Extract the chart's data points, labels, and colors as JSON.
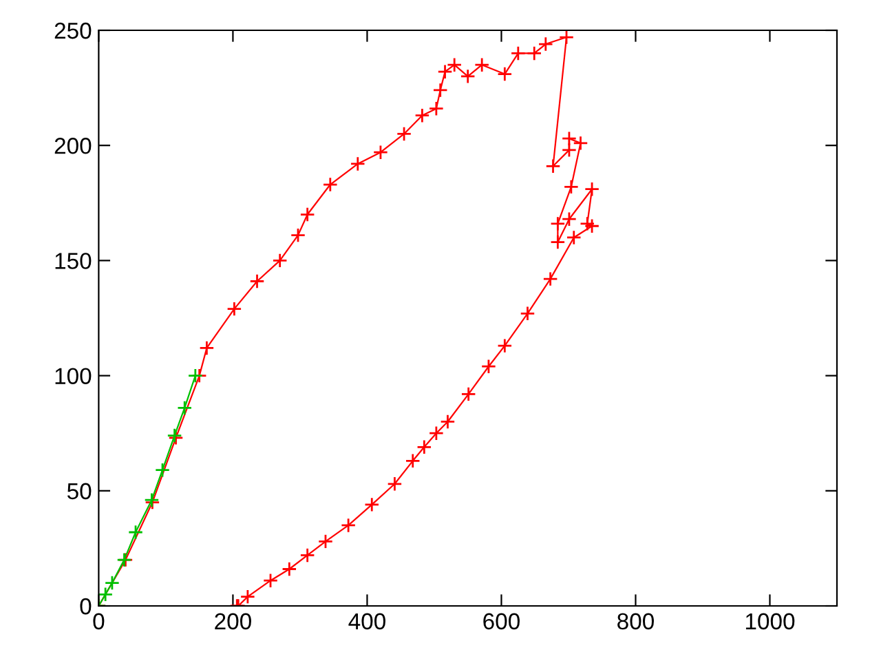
{
  "chart_data": {
    "type": "line",
    "xlim": [
      0,
      1100
    ],
    "ylim": [
      0,
      250
    ],
    "xticks": [
      0,
      200,
      400,
      600,
      800,
      1000
    ],
    "yticks": [
      0,
      50,
      100,
      150,
      200,
      250
    ],
    "series": [
      {
        "color": "#ff0000",
        "marker": "cross",
        "x": [
          0,
          40,
          80,
          115,
          150,
          161,
          202,
          236,
          270,
          297,
          311,
          345,
          386,
          420,
          455,
          482,
          503,
          509,
          516,
          530,
          550,
          571,
          605,
          625,
          649,
          666,
          697,
          677,
          701,
          701,
          718,
          704,
          684,
          684,
          701,
          735,
          728,
          735,
          708,
          673,
          639,
          605,
          581,
          551,
          520,
          503,
          485,
          468,
          441,
          407,
          372,
          338,
          311,
          284,
          256,
          222,
          208,
          206
        ],
        "values": [
          0,
          20,
          45,
          73,
          100,
          112,
          129,
          141,
          150,
          161,
          170,
          183,
          192,
          197,
          205,
          213,
          216,
          224,
          232,
          235,
          230,
          235,
          231,
          240,
          240,
          244,
          247,
          191,
          198,
          203,
          201,
          182,
          166,
          158,
          168,
          181,
          166,
          165,
          160,
          142,
          127,
          113,
          104,
          92,
          80,
          75,
          69,
          63,
          53,
          44,
          35,
          28,
          22,
          16,
          11,
          4,
          0,
          0
        ]
      },
      {
        "color": "#00c000",
        "marker": "cross",
        "x": [
          0,
          10,
          20,
          38,
          55,
          79,
          95,
          113,
          128,
          144
        ],
        "values": [
          0,
          5,
          10,
          20,
          32,
          46,
          59,
          74,
          86,
          100
        ]
      }
    ]
  }
}
